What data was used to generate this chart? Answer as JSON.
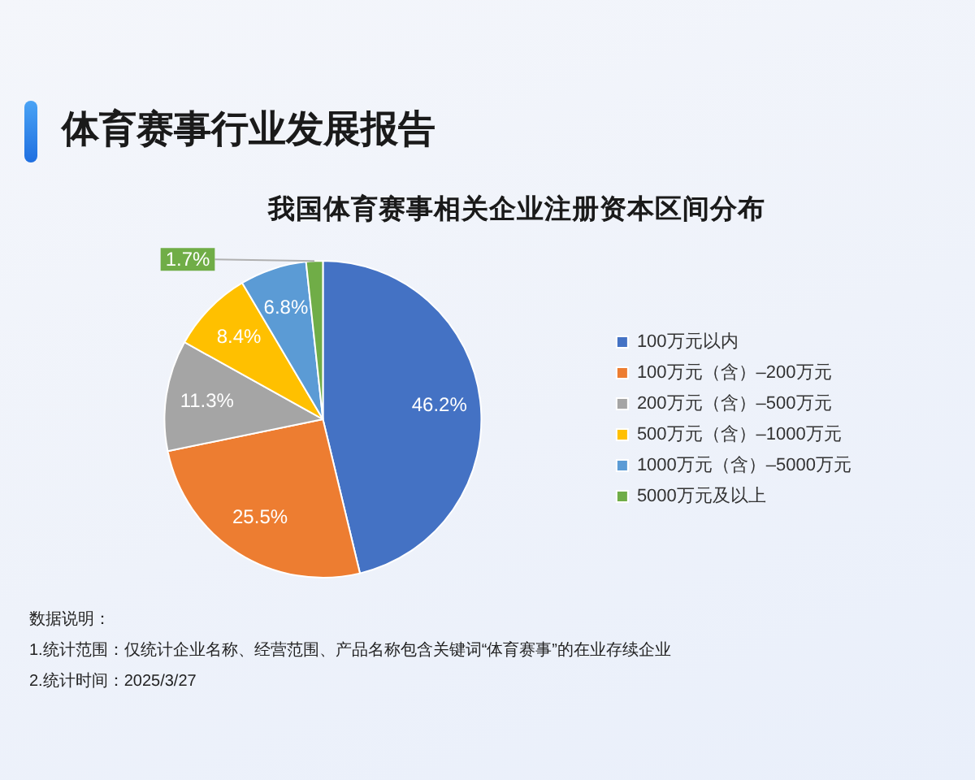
{
  "chart_data": {
    "type": "pie",
    "title": "体育赛事行业发展报告",
    "subtitle": "我国体育赛事相关企业注册资本区间分布",
    "categories": [
      "100万元以内",
      "100万元（含）–200万元",
      "200万元（含）–500万元",
      "500万元（含）–1000万元",
      "1000万元（含）–5000万元",
      "5000万元及以上"
    ],
    "values": [
      46.2,
      25.5,
      11.3,
      8.4,
      6.8,
      1.7
    ],
    "colors": [
      "#4472c4",
      "#ed7d31",
      "#a5a5a5",
      "#ffc000",
      "#5b9bd5",
      "#70ad47"
    ],
    "value_labels": [
      "46.2%",
      "25.5%",
      "11.3%",
      "8.4%",
      "6.8%",
      "1.7%"
    ],
    "legend": "right",
    "annotations": [
      "数据说明：",
      "1.统计范围：仅统计企业名称、经营范围、产品名称包含关键词“体育赛事”的在业存续企业",
      "2.统计时间：2025/3/27"
    ]
  }
}
